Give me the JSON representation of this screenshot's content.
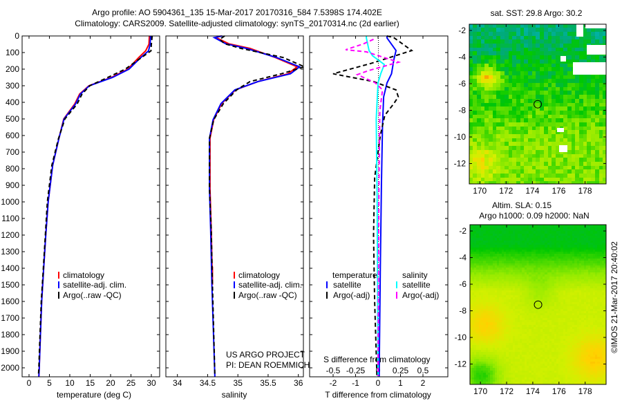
{
  "header": {
    "line1": "Argo profile: AO 5904361_135 15-Mar-2017 20170316_584 7.5398S 174.402E",
    "line2": "Climatology: CARS2009. Satellite-adjusted climatology: synTS_20170314.nc (2d earlier)"
  },
  "colors": {
    "climatology": "#ff0000",
    "satellite": "#0000ff",
    "argo": "#000000",
    "salinity_satellite": "#00ffff",
    "salinity_argo": "#ff00ff"
  },
  "chart_data": [
    {
      "type": "line",
      "title": "",
      "xlabel": "temperature (deg C)",
      "ylabel": "",
      "xlim": [
        -1.7,
        32
      ],
      "ylim": [
        2055,
        0
      ],
      "xticks": [
        "0",
        "5",
        "10",
        "15",
        "20",
        "25",
        "30"
      ],
      "xtick_values": [
        0,
        5,
        10,
        15,
        20,
        25,
        30
      ],
      "yticks": [
        "0",
        "100",
        "200",
        "300",
        "400",
        "500",
        "600",
        "700",
        "800",
        "900",
        "1000",
        "1100",
        "1200",
        "1300",
        "1400",
        "1500",
        "1600",
        "1700",
        "1800",
        "1900",
        "2000"
      ],
      "legend": [
        "climatology",
        "satellite-adj. clim.",
        "Argo(..raw -QC)"
      ],
      "series": [
        {
          "name": "climatology",
          "color": "#ff0000",
          "dash": false,
          "depth": [
            0,
            50,
            90,
            130,
            200,
            250,
            300,
            350,
            410,
            500,
            620,
            780,
            1000,
            1200,
            1400,
            1600,
            1800,
            2000,
            2055
          ],
          "values": [
            29.5,
            29.4,
            28.6,
            26.9,
            24.2,
            20.2,
            14.7,
            12.4,
            11.2,
            8.5,
            7.3,
            5.8,
            4.7,
            4.1,
            3.6,
            3.1,
            2.8,
            2.5,
            2.4
          ]
        },
        {
          "name": "satellite-adj. clim.",
          "color": "#0000ff",
          "dash": false,
          "depth": [
            0,
            50,
            90,
            130,
            200,
            250,
            300,
            350,
            410,
            500,
            620,
            780,
            1000,
            1200,
            1400,
            1600,
            1800,
            2000,
            2055
          ],
          "values": [
            29.8,
            29.7,
            29.3,
            27.4,
            24.5,
            20.5,
            14.8,
            12.6,
            11.4,
            8.6,
            7.3,
            5.8,
            4.7,
            4.1,
            3.6,
            3.1,
            2.8,
            2.5,
            2.4
          ]
        },
        {
          "name": "Argo(..raw -QC)",
          "color": "#000000",
          "dash": true,
          "depth": [
            0,
            50,
            90,
            130,
            200,
            250,
            300,
            350,
            410,
            500,
            620,
            780,
            1000,
            1200,
            1400,
            1600,
            1800,
            2000,
            2050
          ],
          "values": [
            30.2,
            30.0,
            29.9,
            27.6,
            23.6,
            19.3,
            14.9,
            13.0,
            11.8,
            8.8,
            7.2,
            5.6,
            4.5,
            4.0,
            3.5,
            3.0,
            2.7,
            2.4,
            2.3
          ]
        }
      ]
    },
    {
      "type": "line",
      "xlabel": "salinity",
      "xlim": [
        33.82,
        36.09
      ],
      "ylim": [
        2055,
        0
      ],
      "xticks": [
        "34",
        "34.5",
        "35",
        "35.5",
        "36"
      ],
      "xtick_values": [
        34,
        34.5,
        35,
        35.5,
        36
      ],
      "legend": [
        "climatology",
        "satellite-adj. clim.",
        "Argo(..raw -QC)"
      ],
      "annotation": [
        "US ARGO PROJECT",
        "PI: DEAN ROEMMICH"
      ],
      "series": [
        {
          "name": "climatology",
          "color": "#ff0000",
          "dash": false,
          "depth": [
            0,
            10,
            47,
            75,
            130,
            186,
            228,
            275,
            325,
            408,
            505,
            617,
            921,
            1171,
            1500,
            1390
          ],
          "values": [
            34.72,
            34.64,
            34.85,
            35.2,
            35.62,
            35.98,
            35.83,
            35.33,
            34.96,
            34.73,
            34.6,
            34.54,
            34.54,
            34.56,
            34.58,
            34.58
          ]
        },
        {
          "name": "satellite-adj. clim.",
          "color": "#0000ff",
          "dash": false,
          "depth": [
            0,
            10,
            47,
            75,
            130,
            186,
            228,
            275,
            325,
            408,
            505,
            617,
            921,
            1171,
            1500,
            2055
          ],
          "values": [
            34.74,
            34.61,
            34.8,
            35.14,
            35.64,
            36.02,
            35.87,
            35.33,
            34.95,
            34.72,
            34.59,
            34.53,
            34.53,
            34.55,
            34.57,
            34.62
          ]
        },
        {
          "name": "Argo(..raw -QC)",
          "color": "#000000",
          "dash": true,
          "depth": [
            0,
            20,
            47,
            75,
            130,
            186,
            228,
            275,
            325,
            408,
            505,
            617,
            921,
            1171,
            1500,
            2050
          ],
          "values": [
            34.78,
            34.7,
            34.78,
            35.05,
            35.75,
            36.1,
            35.72,
            35.2,
            34.98,
            34.76,
            34.6,
            34.53,
            34.53,
            34.56,
            34.58,
            34.62
          ]
        }
      ]
    },
    {
      "type": "line",
      "xlabel": "T difference from climatology",
      "xlabel2": "S difference from climatology",
      "xlim": [
        -3.05,
        3.1
      ],
      "xlim_salinity": [
        -0.76,
        0.78
      ],
      "ylim": [
        2055,
        0
      ],
      "xticks": [
        "-2",
        "-1",
        "0",
        "1",
        "2"
      ],
      "xtick_values": [
        -2,
        -1,
        0,
        1,
        2
      ],
      "sticks": [
        "-0.5",
        "-0.25",
        "0",
        "0.25",
        "0.5"
      ],
      "stick_values": [
        -0.5,
        -0.25,
        0,
        0.25,
        0.5
      ],
      "legend_headers": [
        "temperature",
        "salinity"
      ],
      "legend": [
        "satellite",
        "Argo(-adj)",
        "satellite",
        "Argo(-adj)"
      ],
      "series": [
        {
          "name": "temperature satellite",
          "color": "#0000ff",
          "dash": false,
          "units": "T",
          "depth": [
            0,
            12,
            88,
            145,
            228,
            283,
            367,
            533,
            900,
            1400,
            2055
          ],
          "values": [
            0.4,
            0.4,
            0.8,
            0.7,
            0.6,
            0.4,
            0.25,
            0.2,
            0.15,
            0.1,
            0.05
          ]
        },
        {
          "name": "temperature Argo(-adj)",
          "color": "#000000",
          "dash": true,
          "units": "T",
          "depth": [
            0,
            10,
            88,
            165,
            228,
            275,
            325,
            367,
            408,
            478,
            600,
            854,
            1200,
            1600,
            2050
          ],
          "values": [
            0.4,
            0.7,
            1.5,
            -0.3,
            -2.0,
            -0.2,
            0.8,
            0.9,
            0.7,
            0.3,
            0.1,
            -0.15,
            -0.2,
            -0.15,
            -0.05
          ]
        },
        {
          "name": "salinity satellite",
          "color": "#00ffff",
          "dash": false,
          "units": "S",
          "depth": [
            0,
            12,
            88,
            120,
            172,
            228,
            283,
            500,
            1000,
            2055
          ],
          "values": [
            -0.13,
            -0.13,
            -0.1,
            -0.06,
            0.07,
            0.03,
            0,
            -0.02,
            -0.01,
            0
          ]
        },
        {
          "name": "salinity Argo(-adj)",
          "color": "#ff00ff",
          "dash": true,
          "units": "S",
          "depth": [
            20,
            47,
            83,
            96,
            158,
            208,
            233,
            283,
            325,
            450,
            921,
            2050
          ],
          "values": [
            -0.05,
            -0.16,
            -0.36,
            -0.13,
            0.23,
            -0.1,
            -0.23,
            -0.03,
            0.05,
            0.02,
            0.01,
            0
          ]
        }
      ]
    }
  ],
  "maps": [
    {
      "title": "sat. SST: 29.8 Argo: 30.2",
      "xticks": [
        "170",
        "172",
        "174",
        "176",
        "178"
      ],
      "yticks": [
        "-2",
        "-4",
        "-6",
        "-8",
        "-10",
        "-12"
      ],
      "profile_lon": 174.402,
      "profile_lat": -7.5398
    },
    {
      "title1": "Altim. SLA: 0.15",
      "title2": "Argo h1000: 0.09 h2000: NaN",
      "xticks": [
        "170",
        "172",
        "174",
        "176",
        "178"
      ],
      "yticks": [
        "-2",
        "-4",
        "-6",
        "-8",
        "-10",
        "-12"
      ],
      "profile_lon": 174.402,
      "profile_lat": -7.5398
    }
  ],
  "credit": "©IMOS 21-Mar-2017 20:40:02"
}
